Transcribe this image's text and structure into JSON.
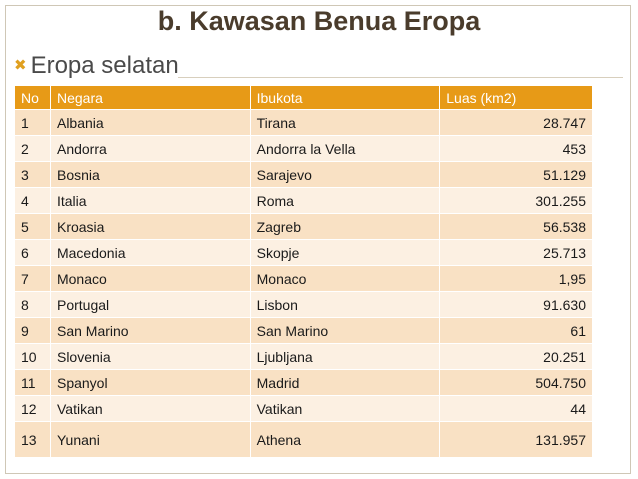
{
  "title": "b. Kawasan Benua Eropa",
  "subtitle": "Eropa selatan",
  "icons": {
    "bullet": "check-x-bullet-icon"
  },
  "colors": {
    "header": "#e79a17",
    "row_odd": "#f9e1c4",
    "row_even": "#fcf0e2",
    "bullet": "#e0a020"
  },
  "table": {
    "headers": [
      "No",
      "Negara",
      "Ibukota",
      "Luas (km2)"
    ],
    "rows": [
      [
        "1",
        "Albania",
        "Tirana",
        "28.747"
      ],
      [
        "2",
        "Andorra",
        "Andorra la Vella",
        "453"
      ],
      [
        "3",
        "Bosnia",
        "Sarajevo",
        "51.129"
      ],
      [
        "4",
        "Italia",
        "Roma",
        "301.255"
      ],
      [
        "5",
        "Kroasia",
        "Zagreb",
        "56.538"
      ],
      [
        "6",
        "Macedonia",
        "Skopje",
        "25.713"
      ],
      [
        "7",
        "Monaco",
        "Monaco",
        "1,95"
      ],
      [
        "8",
        "Portugal",
        "Lisbon",
        "91.630"
      ],
      [
        "9",
        "San Marino",
        "San Marino",
        "61"
      ],
      [
        "10",
        "Slovenia",
        "Ljubljana",
        "20.251"
      ],
      [
        "11",
        "Spanyol",
        "Madrid",
        "504.750"
      ],
      [
        "12",
        "Vatikan",
        "Vatikan",
        "44"
      ],
      [
        "13",
        "Yunani",
        "Athena",
        "131.957"
      ]
    ]
  }
}
